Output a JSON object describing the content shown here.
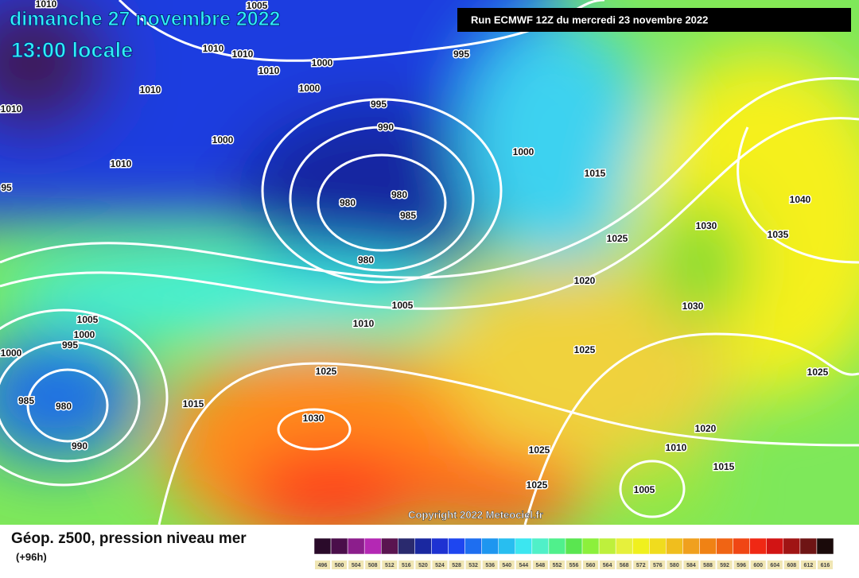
{
  "title": "dimanche 27 novembre 2022",
  "subtitle": "13:00 locale",
  "run_info": "Run ECMWF 12Z du mercredi 23 novembre 2022",
  "copyright": "Copyright 2022 Meteociel.fr",
  "isobar_labels": [
    1010,
    1005,
    1010,
    1010,
    1000,
    1010,
    1000,
    1010,
    1010,
    995,
    995,
    990,
    1000,
    1010,
    1000,
    1015,
    95,
    980,
    980,
    985,
    1040,
    1030,
    1035,
    1025,
    980,
    1020,
    1030,
    1005,
    1010,
    1005,
    1000,
    995,
    1000,
    1025,
    1025,
    1025,
    985,
    980,
    1015,
    1030,
    1020,
    990,
    1010,
    1025,
    1015,
    1025,
    1005
  ],
  "legend": {
    "title": "Géop. z500, pression niveau mer",
    "subtitle": "(+96h)",
    "labels": [
      496,
      500,
      504,
      508,
      512,
      516,
      520,
      524,
      528,
      532,
      536,
      540,
      544,
      548,
      552,
      556,
      560,
      564,
      568,
      572,
      576,
      580,
      584,
      588,
      592,
      596,
      600,
      604,
      608,
      612,
      616
    ],
    "colors": [
      "#2a0a2a",
      "#4a0e4a",
      "#8c1e8c",
      "#b428b4",
      "#5a1450",
      "#2a2a6e",
      "#1a28a0",
      "#1e32d2",
      "#1e46f0",
      "#1e6ef0",
      "#1e96f0",
      "#28bef0",
      "#3ce6f0",
      "#50f0c8",
      "#50f08c",
      "#5ae650",
      "#8cf03c",
      "#bef03c",
      "#e6f03c",
      "#f0f01e",
      "#f0dc1e",
      "#f0be1e",
      "#f0a01e",
      "#f08214",
      "#f06414",
      "#f04614",
      "#f02814",
      "#d21414",
      "#a01414",
      "#6e1414",
      "#1a0a0a"
    ]
  }
}
